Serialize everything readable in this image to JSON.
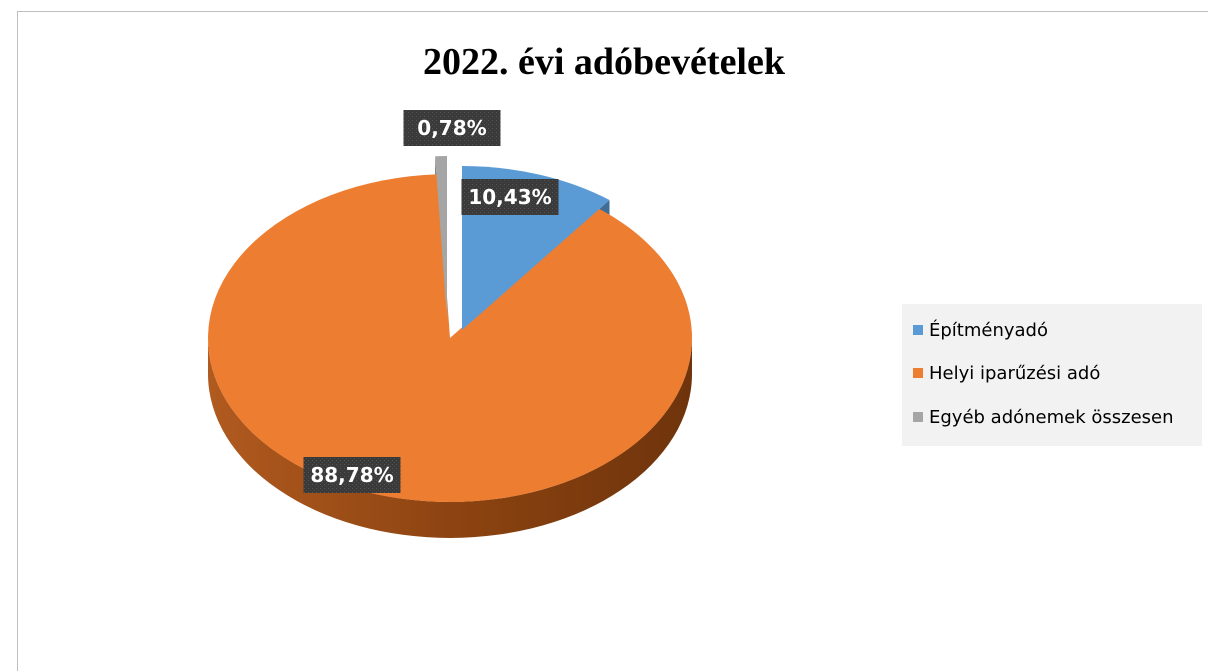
{
  "chart_data": {
    "type": "pie",
    "title": "2022. évi adóbevételek",
    "categories": [
      "Építményadó",
      "Helyi iparűzési adó",
      "Egyéb adónemek összesen"
    ],
    "values": [
      10.43,
      88.78,
      0.78
    ],
    "data_labels": [
      "10,43%",
      "88,78%",
      "0,78%"
    ],
    "colors": [
      "#5B9BD5",
      "#ED7D31",
      "#A5A5A5"
    ],
    "legend_position": "right",
    "style": "3d-exploded"
  }
}
